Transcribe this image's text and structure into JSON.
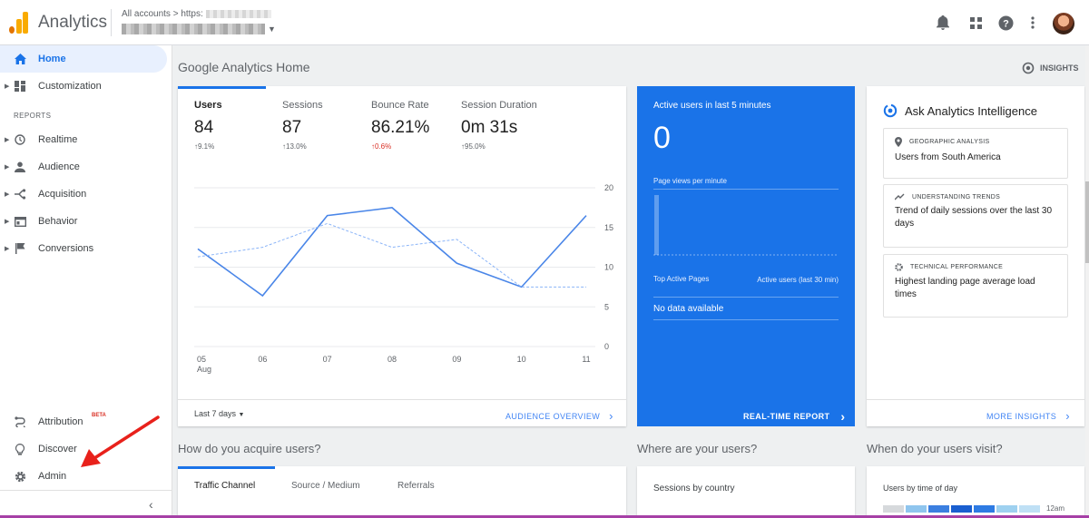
{
  "app": {
    "title": "Analytics"
  },
  "account": {
    "crumb_label": "All accounts > https:"
  },
  "sidebar": {
    "home": "Home",
    "customization": "Customization",
    "reports_title": "REPORTS",
    "items": [
      "Realtime",
      "Audience",
      "Acquisition",
      "Behavior",
      "Conversions"
    ],
    "attribution": "Attribution",
    "beta": "BETA",
    "discover": "Discover",
    "admin": "Admin"
  },
  "page": {
    "title": "Google Analytics Home",
    "insights_button": "INSIGHTS"
  },
  "users_card": {
    "metrics": [
      {
        "label": "Users",
        "value": "84",
        "change": "↑9.1%"
      },
      {
        "label": "Sessions",
        "value": "87",
        "change": "↑13.0%"
      },
      {
        "label": "Bounce Rate",
        "value": "86.21%",
        "change": "↑0.6%"
      },
      {
        "label": "Session Duration",
        "value": "0m 31s",
        "change": "↑95.0%"
      }
    ],
    "period": "Last 7 days",
    "footer_link": "AUDIENCE OVERVIEW"
  },
  "chart_data": {
    "type": "line",
    "x": [
      "05",
      "06",
      "07",
      "08",
      "09",
      "10",
      "11"
    ],
    "x_sublabel": "Aug",
    "series": [
      {
        "style": "solid",
        "values": [
          12.3,
          6.4,
          16.5,
          17.5,
          10.5,
          7.5,
          16.5
        ]
      },
      {
        "style": "dashed",
        "values": [
          11.3,
          12.5,
          15.5,
          12.5,
          13.5,
          7.5,
          7.5
        ]
      }
    ],
    "y_ticks": [
      0,
      5,
      10,
      15,
      20
    ],
    "ylim": [
      0,
      20
    ],
    "grid": true,
    "y_axis_side": "right"
  },
  "realtime": {
    "title": "Active users in last 5 minutes",
    "count": "0",
    "subtitle": "Page views per minute",
    "pages_header": "Top Active Pages",
    "active_header": "Active users (last 30 min)",
    "no_data": "No data available",
    "footer_link": "REAL-TIME REPORT"
  },
  "intelligence": {
    "title": "Ask Analytics Intelligence",
    "items": [
      {
        "category": "GEOGRAPHIC ANALYSIS",
        "text": "Users from South America"
      },
      {
        "category": "UNDERSTANDING TRENDS",
        "text": "Trend of daily sessions over the last 30 days"
      },
      {
        "category": "TECHNICAL PERFORMANCE",
        "text": "Highest landing page average load times"
      }
    ],
    "footer_link": "MORE INSIGHTS"
  },
  "sections": {
    "acquire": "How do you acquire users?",
    "where": "Where are your users?",
    "when": "When do your users visit?"
  },
  "acquire_tabs": [
    "Traffic Channel",
    "Source / Medium",
    "Referrals"
  ],
  "geo": {
    "label": "Sessions by country"
  },
  "time": {
    "label": "Users by time of day",
    "first_row_label": "12am"
  },
  "colors": {
    "accent": "#1a73e8",
    "brand_orange": "#f9ab00",
    "negative": "#d93025"
  }
}
